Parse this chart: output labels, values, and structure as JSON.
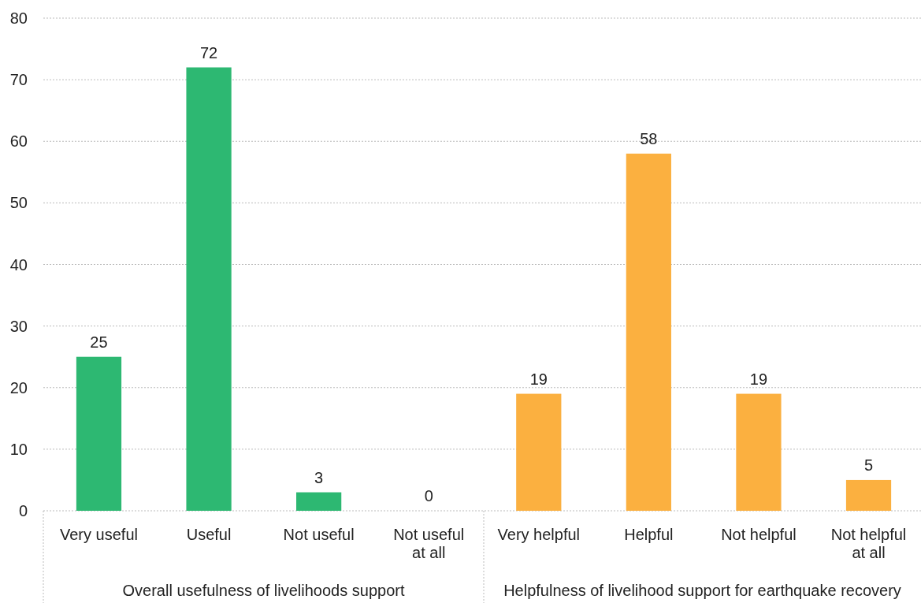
{
  "chart_data": {
    "type": "bar",
    "categories": [
      "Very useful",
      "Useful",
      "Not useful",
      "Not useful at all",
      "Very helpful",
      "Helpful",
      "Not helpful",
      "Not helpful at all"
    ],
    "series": [
      {
        "color": "#2db872",
        "values": [
          25,
          72,
          3,
          0,
          null,
          null,
          null,
          null
        ]
      },
      {
        "color": "#fbb040",
        "values": [
          null,
          null,
          null,
          null,
          19,
          58,
          19,
          5
        ]
      }
    ],
    "ylim": [
      0,
      80
    ],
    "yticks": [
      0,
      10,
      20,
      30,
      40,
      50,
      60,
      70,
      80
    ],
    "grid": "y",
    "data_labels": true,
    "annotations": [
      "Overall usefulness of livelihoods support",
      "Helpfulness of livelihood support for earthquake recovery"
    ]
  }
}
